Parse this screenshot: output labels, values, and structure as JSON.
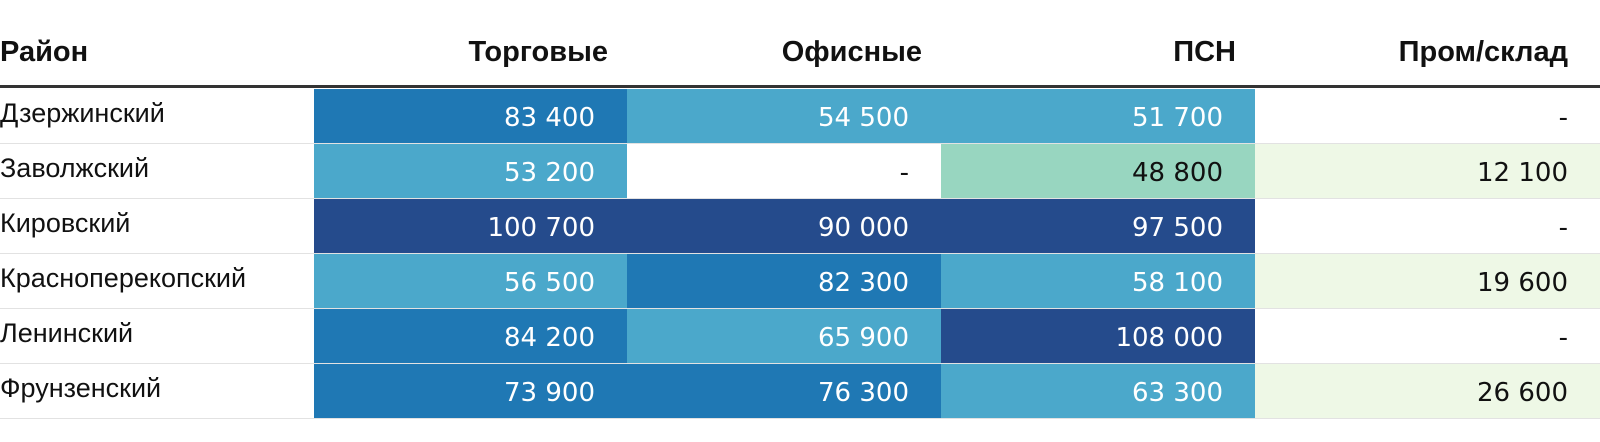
{
  "chart_data": {
    "type": "table",
    "columns": [
      "Район",
      "Торговые",
      "Офисные",
      "ПСН",
      "Пром/склад"
    ],
    "rows": [
      {
        "name": "Дзержинский",
        "cells": [
          {
            "text": "83 400",
            "value": 83400,
            "bg": "#1f78b4",
            "fg": "#ffffff"
          },
          {
            "text": "54 500",
            "value": 54500,
            "bg": "#4ba8cb",
            "fg": "#ffffff"
          },
          {
            "text": "51 700",
            "value": 51700,
            "bg": "#4ba8cb",
            "fg": "#ffffff"
          },
          {
            "text": "-",
            "value": null,
            "bg": "#ffffff",
            "fg": "#111111"
          }
        ]
      },
      {
        "name": "Заволжский",
        "cells": [
          {
            "text": "53 200",
            "value": 53200,
            "bg": "#4ba8cb",
            "fg": "#ffffff"
          },
          {
            "text": "-",
            "value": null,
            "bg": "#ffffff",
            "fg": "#111111"
          },
          {
            "text": "48 800",
            "value": 48800,
            "bg": "#98d6c0",
            "fg": "#111111"
          },
          {
            "text": "12 100",
            "value": 12100,
            "bg": "#eef8e6",
            "fg": "#111111"
          }
        ]
      },
      {
        "name": "Кировский",
        "cells": [
          {
            "text": "100 700",
            "value": 100700,
            "bg": "#254b8c",
            "fg": "#ffffff"
          },
          {
            "text": "90 000",
            "value": 90000,
            "bg": "#254b8c",
            "fg": "#ffffff"
          },
          {
            "text": "97 500",
            "value": 97500,
            "bg": "#254b8c",
            "fg": "#ffffff"
          },
          {
            "text": "-",
            "value": null,
            "bg": "#ffffff",
            "fg": "#111111"
          }
        ]
      },
      {
        "name": "Красноперекопский",
        "cells": [
          {
            "text": "56 500",
            "value": 56500,
            "bg": "#4ba8cb",
            "fg": "#ffffff"
          },
          {
            "text": "82 300",
            "value": 82300,
            "bg": "#1f78b4",
            "fg": "#ffffff"
          },
          {
            "text": "58 100",
            "value": 58100,
            "bg": "#4ba8cb",
            "fg": "#ffffff"
          },
          {
            "text": "19 600",
            "value": 19600,
            "bg": "#eef8e6",
            "fg": "#111111"
          }
        ]
      },
      {
        "name": "Ленинский",
        "cells": [
          {
            "text": "84 200",
            "value": 84200,
            "bg": "#1f78b4",
            "fg": "#ffffff"
          },
          {
            "text": "65 900",
            "value": 65900,
            "bg": "#4ba8cb",
            "fg": "#ffffff"
          },
          {
            "text": "108 000",
            "value": 108000,
            "bg": "#254b8c",
            "fg": "#ffffff"
          },
          {
            "text": "-",
            "value": null,
            "bg": "#ffffff",
            "fg": "#111111"
          }
        ]
      },
      {
        "name": "Фрунзенский",
        "cells": [
          {
            "text": "73 900",
            "value": 73900,
            "bg": "#1f78b4",
            "fg": "#ffffff"
          },
          {
            "text": "76 300",
            "value": 76300,
            "bg": "#1f78b4",
            "fg": "#ffffff"
          },
          {
            "text": "63 300",
            "value": 63300,
            "bg": "#4ba8cb",
            "fg": "#ffffff"
          },
          {
            "text": "26 600",
            "value": 26600,
            "bg": "#eef8e6",
            "fg": "#111111"
          }
        ]
      }
    ]
  }
}
